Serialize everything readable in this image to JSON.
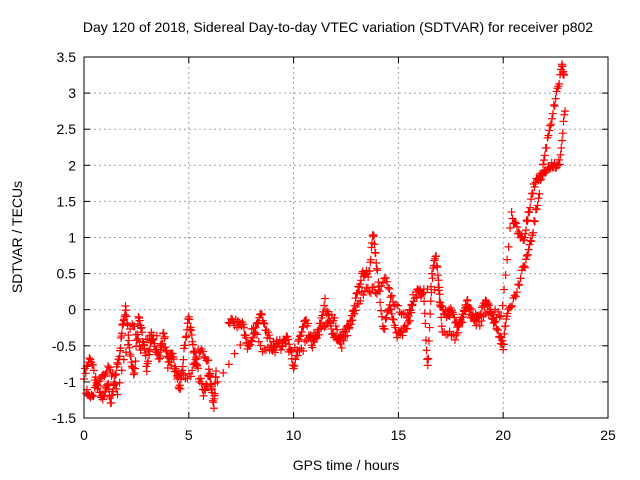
{
  "chart_data": {
    "type": "scatter",
    "title": "Day 120 of 2018, Sidereal Day-to-day VTEC variation (SDTVAR) for receiver p802",
    "xlabel": "GPS time / hours",
    "ylabel": "SDTVAR / TECUs",
    "xlim": [
      0,
      25
    ],
    "ylim": [
      -1.5,
      3.5
    ],
    "xticks": [
      "0",
      "5",
      "10",
      "15",
      "20",
      "25"
    ],
    "yticks": [
      "-1.5",
      "-1",
      "-0.5",
      "0",
      "0.5",
      "1",
      "1.5",
      "2",
      "2.5",
      "3",
      "3.5"
    ],
    "grid": true,
    "marker": "plus",
    "color": "#ff0000",
    "series": [
      {
        "name": "SDTVAR",
        "trace": [
          [
            0.0,
            -0.9
          ],
          [
            0.3,
            -0.65
          ],
          [
            0.6,
            -1.05
          ],
          [
            0.9,
            -1.25
          ],
          [
            1.1,
            -1.0
          ],
          [
            1.3,
            -1.3
          ],
          [
            1.5,
            -0.9
          ],
          [
            1.7,
            -0.6
          ],
          [
            1.85,
            -0.2
          ],
          [
            2.0,
            0.05
          ],
          [
            2.2,
            -0.6
          ],
          [
            2.4,
            -0.9
          ],
          [
            2.6,
            -0.05
          ],
          [
            2.8,
            -0.4
          ],
          [
            3.0,
            -0.8
          ],
          [
            3.2,
            -0.4
          ],
          [
            3.4,
            -0.5
          ],
          [
            3.6,
            -0.7
          ],
          [
            3.8,
            -0.3
          ],
          [
            4.0,
            -0.75
          ],
          [
            4.2,
            -0.6
          ],
          [
            4.4,
            -0.9
          ],
          [
            4.6,
            -1.1
          ],
          [
            4.8,
            -0.5
          ],
          [
            5.0,
            -0.1
          ],
          [
            5.2,
            -0.5
          ],
          [
            5.4,
            -0.8
          ],
          [
            5.7,
            -1.15
          ],
          [
            6.0,
            -0.9
          ],
          [
            6.2,
            -1.35
          ],
          [
            6.3,
            -0.85
          ],
          [
            6.9,
            -0.15
          ],
          [
            7.3,
            -0.2
          ],
          [
            7.6,
            -0.2
          ],
          [
            7.8,
            -0.55
          ],
          [
            8.1,
            -0.35
          ],
          [
            8.4,
            -0.05
          ],
          [
            8.7,
            -0.3
          ],
          [
            9.0,
            -0.55
          ],
          [
            9.4,
            -0.5
          ],
          [
            9.7,
            -0.35
          ],
          [
            10.0,
            -0.8
          ],
          [
            10.3,
            -0.35
          ],
          [
            10.6,
            -0.15
          ],
          [
            10.9,
            -0.5
          ],
          [
            11.2,
            -0.3
          ],
          [
            11.5,
            0.1
          ],
          [
            11.8,
            -0.3
          ],
          [
            12.1,
            -0.45
          ],
          [
            12.4,
            -0.35
          ],
          [
            12.7,
            -0.2
          ],
          [
            13.0,
            0.2
          ],
          [
            13.3,
            0.5
          ],
          [
            13.6,
            0.5
          ],
          [
            13.8,
            1.05
          ],
          [
            14.0,
            0.5
          ],
          [
            14.3,
            -0.3
          ],
          [
            14.6,
            0.1
          ],
          [
            14.9,
            -0.35
          ],
          [
            15.2,
            -0.3
          ],
          [
            15.5,
            -0.2
          ],
          [
            15.9,
            0.3
          ],
          [
            16.2,
            0.2
          ],
          [
            16.4,
            -0.8
          ],
          [
            16.6,
            0.45
          ],
          [
            16.8,
            0.75
          ],
          [
            17.0,
            0.1
          ],
          [
            17.3,
            -0.1
          ],
          [
            17.5,
            0.0
          ],
          [
            17.8,
            -0.25
          ],
          [
            18.1,
            -0.1
          ],
          [
            18.3,
            0.1
          ],
          [
            18.6,
            -0.15
          ],
          [
            18.9,
            -0.05
          ],
          [
            19.2,
            0.1
          ],
          [
            19.5,
            -0.1
          ],
          [
            19.8,
            -0.35
          ],
          [
            20.0,
            -0.5
          ],
          [
            20.2,
            0.0
          ],
          [
            20.6,
            0.2
          ],
          [
            21.0,
            0.6
          ],
          [
            21.3,
            0.9
          ],
          [
            21.6,
            1.4
          ],
          [
            21.9,
            2.0
          ],
          [
            22.2,
            2.5
          ],
          [
            22.5,
            2.9
          ],
          [
            22.8,
            3.35
          ],
          [
            22.9,
            3.25
          ]
        ],
        "extra_trace": [
          [
            0.1,
            -1.15
          ],
          [
            0.4,
            -1.2
          ],
          [
            0.8,
            -0.95
          ],
          [
            1.2,
            -0.75
          ],
          [
            1.6,
            -1.2
          ],
          [
            2.3,
            -0.15
          ],
          [
            2.7,
            -0.55
          ],
          [
            3.3,
            -0.3
          ],
          [
            4.5,
            -0.95
          ],
          [
            5.1,
            -0.9
          ],
          [
            5.5,
            -0.55
          ],
          [
            5.9,
            -0.7
          ],
          [
            6.1,
            -1.1
          ],
          [
            8.0,
            -0.25
          ],
          [
            8.6,
            -0.6
          ],
          [
            9.2,
            -0.45
          ],
          [
            10.2,
            -0.6
          ],
          [
            10.8,
            -0.4
          ],
          [
            11.4,
            -0.25
          ],
          [
            11.9,
            -0.1
          ],
          [
            12.3,
            -0.55
          ],
          [
            12.9,
            -0.05
          ],
          [
            13.4,
            0.3
          ],
          [
            13.9,
            0.25
          ],
          [
            14.4,
            0.4
          ],
          [
            14.8,
            0.1
          ],
          [
            15.4,
            -0.1
          ],
          [
            15.7,
            0.15
          ],
          [
            16.9,
            0.35
          ],
          [
            17.1,
            -0.3
          ],
          [
            17.7,
            -0.4
          ],
          [
            18.2,
            0.05
          ],
          [
            18.8,
            -0.2
          ],
          [
            19.4,
            0.0
          ],
          [
            19.9,
            -0.1
          ],
          [
            20.4,
            1.3
          ],
          [
            20.7,
            1.1
          ],
          [
            21.0,
            0.95
          ],
          [
            21.2,
            1.35
          ],
          [
            21.5,
            1.75
          ],
          [
            21.8,
            1.9
          ],
          [
            22.1,
            1.95
          ],
          [
            22.4,
            2.0
          ],
          [
            22.7,
            2.05
          ],
          [
            22.95,
            2.75
          ]
        ]
      }
    ]
  }
}
